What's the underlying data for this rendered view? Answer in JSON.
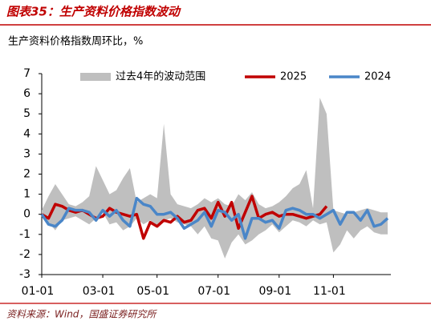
{
  "chart_data": {
    "type": "line",
    "title": "图表35：生产资料价格指数波动",
    "subtitle": "生产资料价格指数周环比，%",
    "source": "资料来源：Wind，国盛证券研究所",
    "categories": [
      "01-01",
      null,
      null,
      null,
      null,
      null,
      null,
      null,
      null,
      "03-01",
      null,
      null,
      null,
      null,
      null,
      null,
      null,
      "05-01",
      null,
      null,
      null,
      null,
      null,
      null,
      null,
      null,
      "07-01",
      null,
      null,
      null,
      null,
      null,
      null,
      null,
      null,
      "09-01",
      null,
      null,
      null,
      null,
      null,
      null,
      null,
      "11-01",
      null,
      null,
      null,
      null,
      null,
      null,
      null,
      null
    ],
    "ylim": [
      -3,
      7
    ],
    "yticks": [
      -3,
      -2,
      -1,
      0,
      1,
      2,
      3,
      4,
      5,
      6,
      7
    ],
    "series": [
      {
        "name": "过去4年的波动范围",
        "type": "band",
        "color": "#bfbfbf",
        "upper": [
          0.2,
          0.9,
          1.5,
          1.0,
          0.5,
          0.4,
          0.6,
          0.9,
          2.4,
          1.7,
          1.0,
          1.2,
          1.8,
          2.3,
          0.6,
          0.8,
          1.0,
          0.8,
          4.5,
          1.0,
          0.5,
          0.4,
          0.3,
          0.5,
          0.8,
          0.6,
          0.8,
          0.5,
          0.4,
          1.0,
          0.7,
          1.1,
          0.5,
          0.3,
          0.4,
          0.6,
          0.9,
          1.3,
          1.5,
          2.2,
          0.3,
          5.8,
          5.0,
          0.2,
          0.1,
          0.0,
          0.1,
          0.2,
          0.3,
          0.2,
          0.1,
          0.1
        ],
        "lower": [
          0,
          -0.4,
          -0.8,
          -0.3,
          -0.2,
          -0.1,
          -0.3,
          -0.5,
          -0.2,
          0.1,
          -0.5,
          -0.4,
          -0.8,
          -0.6,
          -0.2,
          -0.5,
          -0.3,
          -0.6,
          -0.3,
          -0.2,
          -0.4,
          -0.5,
          -0.6,
          -1.0,
          -0.6,
          -1.2,
          -1.3,
          -2.2,
          -1.4,
          -1.0,
          -1.5,
          -1.3,
          -1.0,
          -0.8,
          -0.5,
          -0.9,
          -0.6,
          -0.3,
          -0.4,
          -0.6,
          -0.3,
          -0.5,
          -0.4,
          -1.9,
          -1.5,
          -0.8,
          -1.2,
          -0.8,
          -0.6,
          -0.9,
          -1.0,
          -1.0
        ]
      },
      {
        "name": "2025",
        "color": "#c00000",
        "values": [
          0,
          -0.2,
          0.5,
          0.4,
          0.2,
          0.1,
          0.2,
          0.0,
          -0.2,
          -0.1,
          0.3,
          0.1,
          0.0,
          -0.1,
          0.0,
          -1.2,
          -0.4,
          -0.6,
          -0.3,
          -0.4,
          -0.1,
          -0.4,
          -0.3,
          0.2,
          0.3,
          -0.2,
          0.6,
          -0.1,
          0.6,
          -0.7,
          0.1,
          0.9,
          -0.2,
          0.0,
          0.1,
          -0.1,
          0.0,
          0.0,
          -0.1,
          -0.2,
          -0.1,
          0.0,
          0.4,
          null,
          null,
          null,
          null,
          null,
          null,
          null,
          null,
          null
        ]
      },
      {
        "name": "2024",
        "color": "#4a86c8",
        "values": [
          0.0,
          -0.5,
          -0.6,
          -0.3,
          0.3,
          0.2,
          0.2,
          0.1,
          -0.3,
          0.2,
          -0.1,
          0.2,
          -0.3,
          -0.6,
          0.8,
          0.5,
          0.4,
          0.0,
          0.0,
          0.1,
          -0.2,
          -0.7,
          -0.5,
          -0.3,
          0.1,
          -0.6,
          0.2,
          0.1,
          -0.3,
          0.0,
          -1.2,
          -0.2,
          -0.2,
          -0.4,
          -0.3,
          -0.7,
          0.2,
          0.3,
          0.2,
          0.0,
          0.0,
          -0.2,
          0.0,
          0.2,
          -0.5,
          0.1,
          0.1,
          -0.3,
          0.2,
          -0.6,
          -0.5,
          -0.2
        ]
      }
    ]
  }
}
